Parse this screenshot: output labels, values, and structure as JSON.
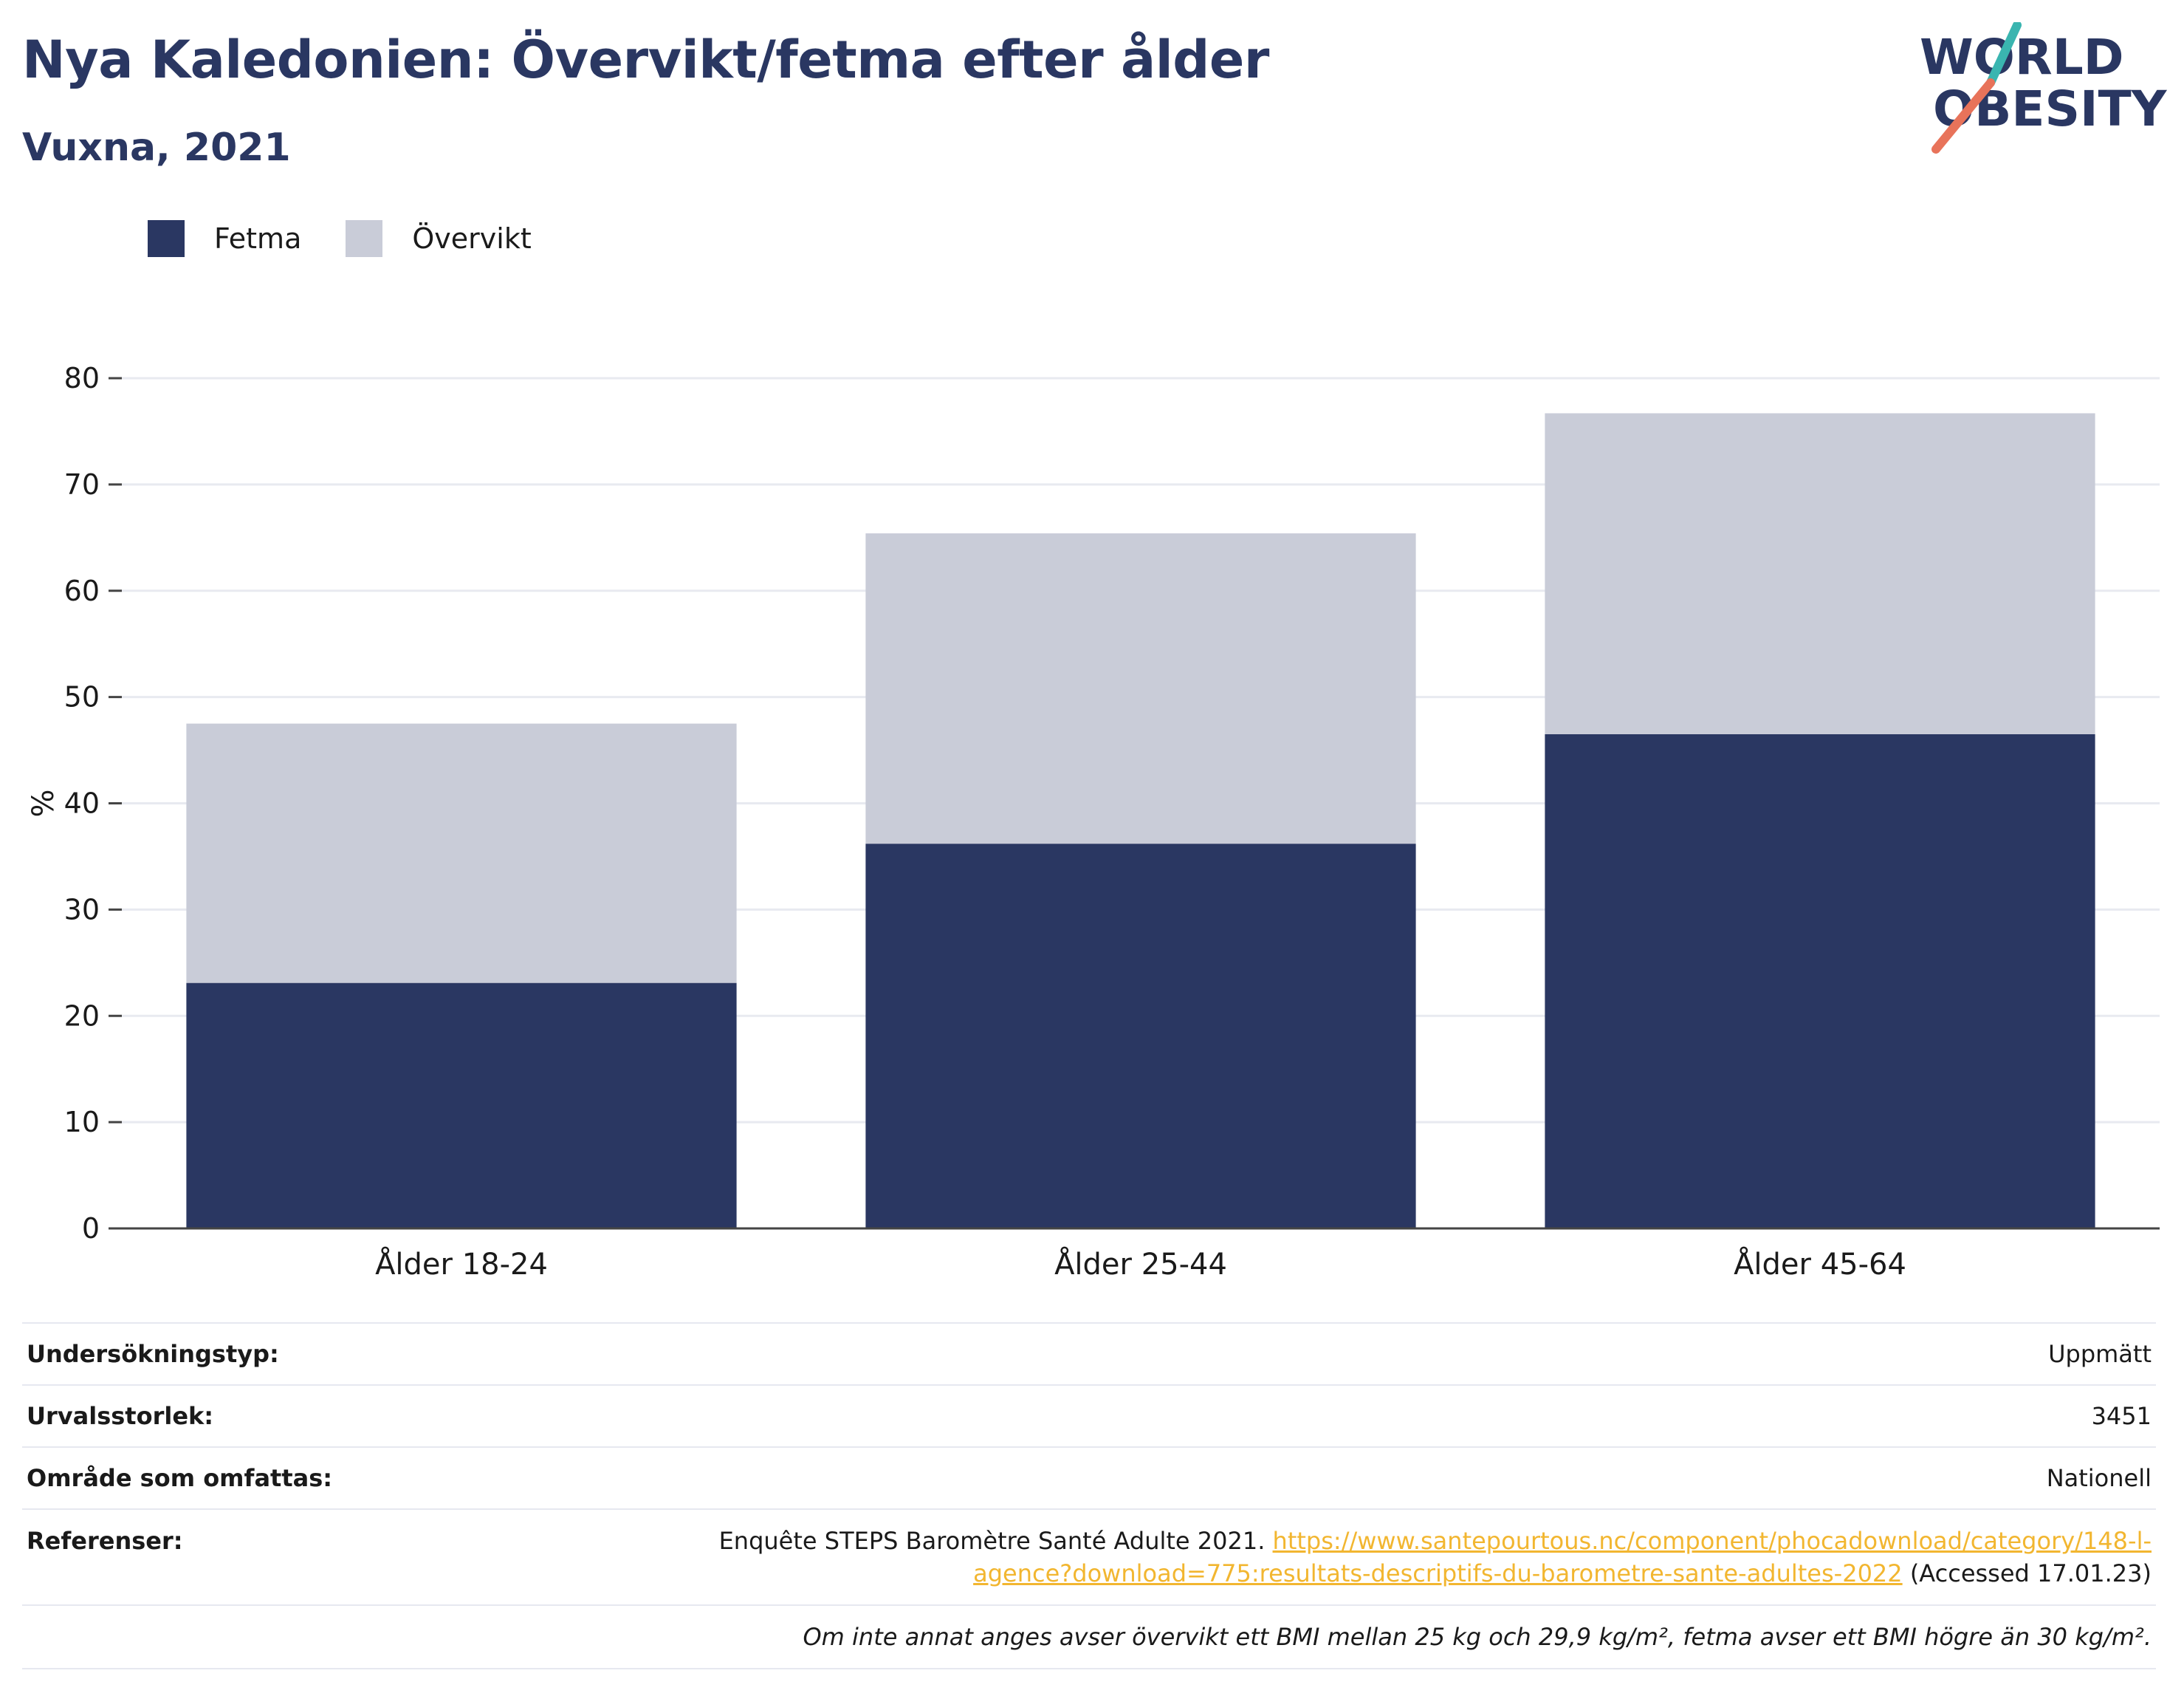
{
  "header": {
    "title": "Nya Kaledonien: Övervikt/fetma efter ålder",
    "subtitle": "Vuxna, 2021"
  },
  "logo": {
    "line1": "WORLD",
    "line2": "OBESITY",
    "accent_teal": "#3ab5b0",
    "accent_coral": "#e8735a"
  },
  "legend": {
    "items": [
      {
        "label": "Fetma",
        "color": "#2a3762"
      },
      {
        "label": "Övervikt",
        "color": "#c9ccd8"
      }
    ]
  },
  "chart_data": {
    "type": "bar",
    "stacked": true,
    "categories": [
      "Ålder 18-24",
      "Ålder 25-44",
      "Ålder 45-64"
    ],
    "series": [
      {
        "name": "Fetma",
        "values": [
          23.1,
          36.2,
          46.5
        ],
        "color": "#2a3762"
      },
      {
        "name": "Övervikt",
        "values": [
          24.4,
          29.2,
          30.2
        ],
        "color": "#c9ccd8"
      }
    ],
    "ylabel": "%",
    "ylim": [
      0,
      80
    ],
    "yticks": [
      0,
      10,
      20,
      30,
      40,
      50,
      60,
      70,
      80
    ],
    "grid": true,
    "legend_position": "top-left"
  },
  "meta": {
    "survey_type_label": "Undersökningstyp:",
    "survey_type_value": "Uppmätt",
    "sample_size_label": "Urvalsstorlek:",
    "sample_size_value": "3451",
    "coverage_label": "Område som omfattas:",
    "coverage_value": "Nationell",
    "references_label": "Referenser:",
    "references_text": "Enquête STEPS Baromètre Santé Adulte 2021.",
    "references_link_line1": "https://www.santepourtous.nc/component/phocadownload/category/148-l-",
    "references_link_line2": "agence?download=775:resultats-descriptifs-du-barometre-sante-adultes-2022",
    "references_accessed": "(Accessed 17.01.23)",
    "note": "Om inte annat anges avser övervikt ett BMI mellan 25 kg och 29,9 kg/m², fetma avser ett BMI högre än 30 kg/m²."
  }
}
